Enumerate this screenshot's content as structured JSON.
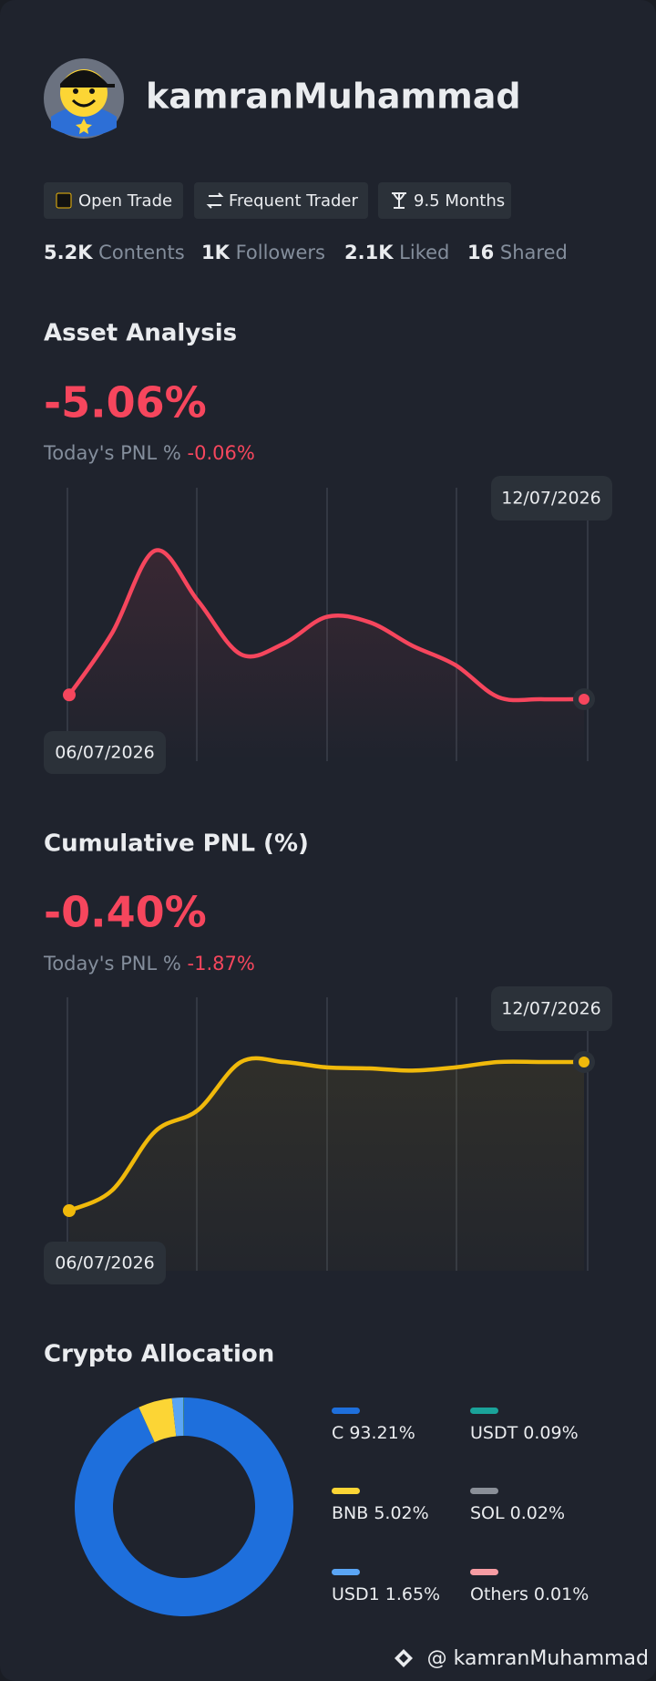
{
  "profile": {
    "name": "kamranMuhammad"
  },
  "badges": [
    "Open Trade",
    "Frequent Trader",
    "9.5 Months"
  ],
  "stats": [
    {
      "value": "5.2K",
      "label": "Contents"
    },
    {
      "value": "1K",
      "label": "Followers"
    },
    {
      "value": "2.1K",
      "label": "Liked"
    },
    {
      "value": "16",
      "label": "Shared"
    }
  ],
  "chart_data": [
    {
      "type": "line",
      "title": "Asset Analysis",
      "headline": "-5.06%",
      "subtitle_label": "Today's PNL %",
      "subtitle_value": "-0.06%",
      "color": "#f6465d",
      "categories": [
        "06/07/2026",
        null,
        null,
        null,
        null,
        null,
        null,
        null,
        null,
        null,
        null,
        null,
        "12/07/2026"
      ],
      "values": [
        52,
        110,
        187,
        140,
        90,
        100,
        125,
        120,
        98,
        80,
        50,
        48,
        48
      ]
    },
    {
      "type": "line",
      "title": "Cumulative PNL (%)",
      "headline": "-0.40%",
      "subtitle_label": "Today's PNL %",
      "subtitle_value": "-1.87%",
      "color": "#f0b90b",
      "categories": [
        "06/07/2026",
        null,
        null,
        null,
        null,
        null,
        null,
        null,
        null,
        null,
        null,
        null,
        "12/07/2026"
      ],
      "values": [
        51,
        70,
        125,
        145,
        190,
        190,
        185,
        184,
        182,
        185,
        190,
        190,
        190
      ]
    },
    {
      "type": "donut",
      "title": "Crypto Allocation",
      "categories": [
        "C",
        "BNB",
        "USD1",
        "USDT",
        "SOL",
        "Others"
      ],
      "values": [
        93.21,
        5.02,
        1.65,
        0.09,
        0.02,
        0.01
      ],
      "value_labels": [
        "93.21%",
        "5.02%",
        "1.65%",
        "0.09%",
        "0.02%",
        "0.01%"
      ],
      "colors": [
        "#1e6fdc",
        "#fcd535",
        "#5aa5f5",
        "#1aa39a",
        "#8a8f98",
        "#f79ca3"
      ]
    }
  ],
  "footer": "@ kamranMuhammad"
}
